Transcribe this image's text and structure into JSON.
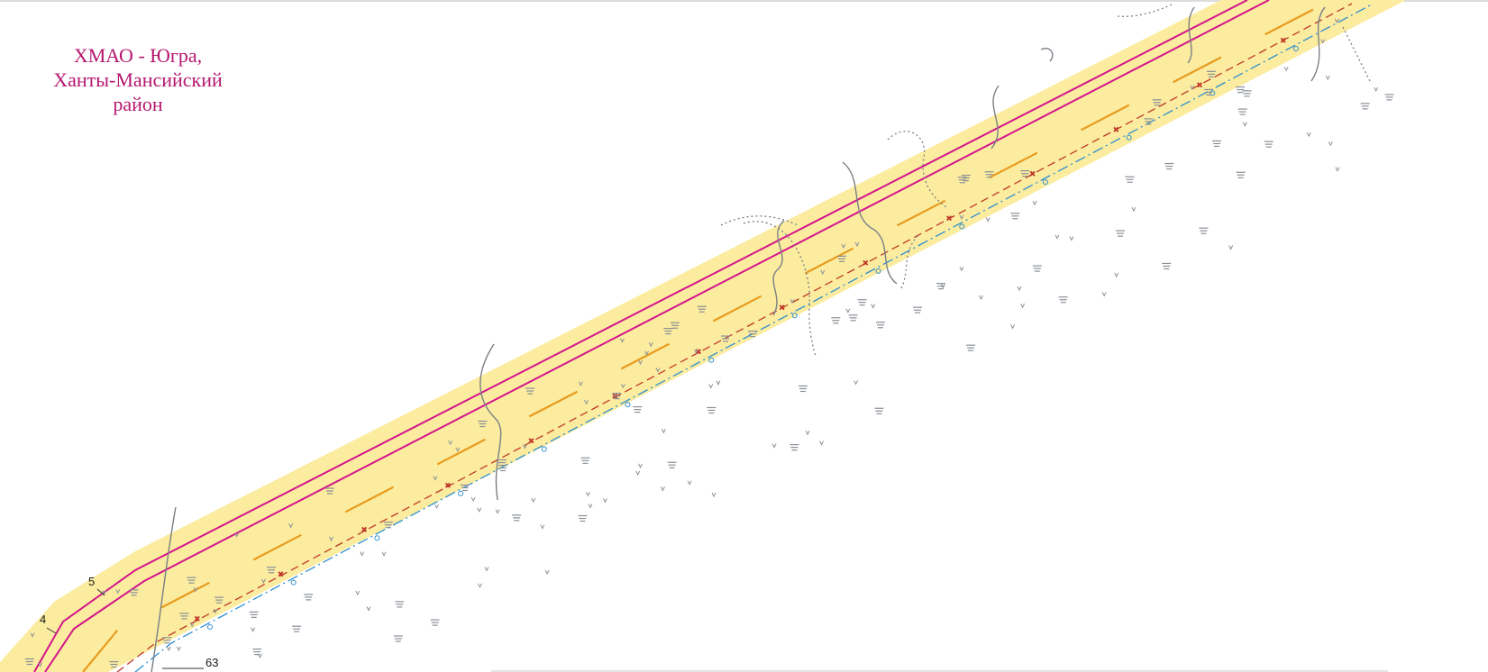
{
  "map": {
    "region_label": {
      "line1": "ХМАО - Югра,",
      "line2": "Ханты-Мансийский",
      "line3": "район",
      "color": "#b5176f"
    },
    "point_labels": [
      "5",
      "4",
      "63"
    ],
    "colors": {
      "corridor": "#fbec9f",
      "road_line": "#d4148c",
      "pipeline_orange": "#e89b1e",
      "cable_red": "#c0392b",
      "cable_blue": "#2f8fd0",
      "contour": "#7a7f86",
      "swamp_symbol": "#8a8f96"
    },
    "icons": [
      "swamp-symbol-icon",
      "grass-symbol-icon"
    ]
  }
}
